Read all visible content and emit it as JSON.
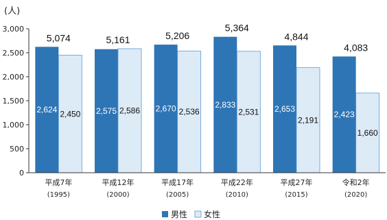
{
  "chart_data": {
    "type": "bar",
    "unit_label": "(人)",
    "categories": [
      "平成7年",
      "平成12年",
      "平成17年",
      "平成22年",
      "平成27年",
      "令和2年"
    ],
    "categories_year": [
      "(1995)",
      "(2000)",
      "(2005)",
      "(2010)",
      "(2015)",
      "(2020)"
    ],
    "series": [
      {
        "name": "男性",
        "values": [
          2624,
          2575,
          2670,
          2833,
          2653,
          2423
        ],
        "value_labels": [
          "2,624",
          "2,575",
          "2,670",
          "2,833",
          "2,653",
          "2,423"
        ],
        "color": "#2e75b6",
        "label_color": "#ffffff"
      },
      {
        "name": "女性",
        "values": [
          2450,
          2586,
          2536,
          2531,
          2191,
          1660
        ],
        "value_labels": [
          "2,450",
          "2,586",
          "2,536",
          "2,531",
          "2,191",
          "1,660"
        ],
        "color": "#ddebf7",
        "label_color": "#111111"
      }
    ],
    "totals": [
      "5,074",
      "5,161",
      "5,206",
      "5,364",
      "4,844",
      "4,083"
    ],
    "total_values": [
      5074,
      5161,
      5206,
      5364,
      4844,
      4083
    ],
    "ylim": [
      0,
      3000
    ],
    "yticks": [
      0,
      500,
      1000,
      1500,
      2000,
      2500,
      3000
    ],
    "ytick_labels": [
      "0",
      "500",
      "1,000",
      "1,500",
      "2,000",
      "2,500",
      "3,000"
    ],
    "grid": false,
    "legend_position": "bottom"
  }
}
